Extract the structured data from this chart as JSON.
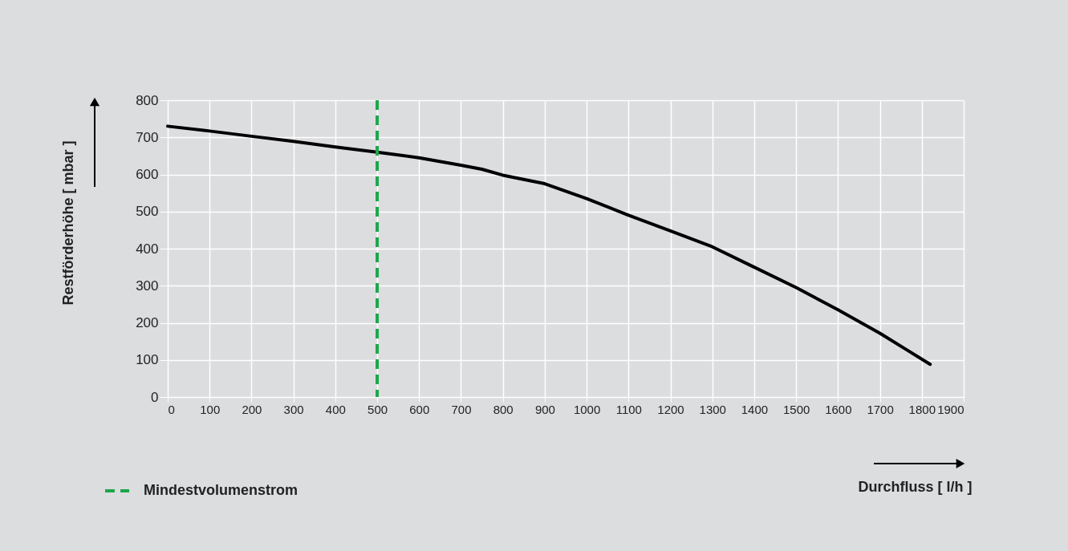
{
  "chart_data": {
    "type": "line",
    "xlabel": "Durchfluss [ l/h ]",
    "ylabel": "Restförderhöhe [ mbar ]",
    "x": [
      0,
      100,
      200,
      300,
      400,
      500,
      600,
      700,
      750,
      800,
      900,
      1000,
      1100,
      1200,
      1300,
      1400,
      1500,
      1600,
      1700,
      1760,
      1820
    ],
    "series": [
      {
        "color": "#000000",
        "values": [
          730,
          717,
          703,
          689,
          674,
          660,
          645,
          625,
          614,
          598,
          575,
          535,
          490,
          448,
          405,
          350,
          295,
          235,
          172,
          130,
          88
        ]
      }
    ],
    "xlim": [
      0,
      1900
    ],
    "xticks": [
      0,
      100,
      200,
      300,
      400,
      500,
      600,
      700,
      800,
      900,
      1000,
      1100,
      1200,
      1300,
      1400,
      1500,
      1600,
      1700,
      1800,
      1900
    ],
    "ylim": [
      0,
      800
    ],
    "yticks": [
      0,
      100,
      200,
      300,
      400,
      500,
      600,
      700,
      800
    ],
    "ref_lines": [
      {
        "axis": "x",
        "value": 500,
        "label": "Mindestvolumenstrom",
        "color": "#1ca64c",
        "line_style": "dashed"
      }
    ],
    "grid": true,
    "legend": "bottom left",
    "marker": "none",
    "line_style": "solid"
  }
}
